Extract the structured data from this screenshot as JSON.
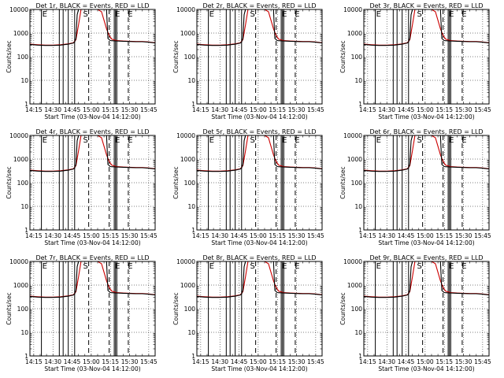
{
  "figure": {
    "colors": {
      "events": "#000000",
      "lld": "#cc0000",
      "background": "#ffffff"
    }
  },
  "chart_data": [
    {
      "type": "line",
      "title": "Det 1r, BLACK = Events, RED = LLD",
      "xlabel": "Start Time (03-Nov-04 14:12:00)",
      "ylabel": "Counts/sec",
      "yscale": "log",
      "ylim": [
        1,
        10000
      ],
      "xlim": [
        "14:12",
        "15:50"
      ],
      "xticks": [
        "14:15",
        "14:30",
        "14:45",
        "15:00",
        "15:15",
        "15:30",
        "15:45"
      ],
      "yticks": [
        "1",
        "10",
        "100",
        "1000",
        "10000"
      ],
      "grid": "dotted"
    },
    {
      "type": "line",
      "title": "Det 2r, BLACK = Events, RED = LLD",
      "xlabel": "Start Time (03-Nov-04 14:12:00)",
      "ylabel": "Counts/sec",
      "yscale": "log",
      "ylim": [
        1,
        10000
      ],
      "xlim": [
        "14:12",
        "15:50"
      ],
      "xticks": [
        "14:15",
        "14:30",
        "14:45",
        "15:00",
        "15:15",
        "15:30",
        "15:45"
      ],
      "yticks": [
        "1",
        "10",
        "100",
        "1000",
        "10000"
      ],
      "grid": "dotted"
    },
    {
      "type": "line",
      "title": "Det 3r, BLACK = Events, RED = LLD",
      "xlabel": "Start Time (03-Nov-04 14:12:00)",
      "ylabel": "Counts/sec",
      "yscale": "log",
      "ylim": [
        1,
        10000
      ],
      "xlim": [
        "14:12",
        "15:50"
      ],
      "xticks": [
        "14:15",
        "14:30",
        "14:45",
        "15:00",
        "15:15",
        "15:30",
        "15:45"
      ],
      "yticks": [
        "1",
        "10",
        "100",
        "1000",
        "10000"
      ],
      "grid": "dotted"
    },
    {
      "type": "line",
      "title": "Det 4r, BLACK = Events, RED = LLD",
      "xlabel": "Start Time (03-Nov-04 14:12:00)",
      "ylabel": "Counts/sec",
      "yscale": "log",
      "ylim": [
        1,
        10000
      ],
      "xlim": [
        "14:12",
        "15:50"
      ],
      "xticks": [
        "14:15",
        "14:30",
        "14:45",
        "15:00",
        "15:15",
        "15:30",
        "15:45"
      ],
      "yticks": [
        "1",
        "10",
        "100",
        "1000",
        "10000"
      ],
      "grid": "dotted"
    },
    {
      "type": "line",
      "title": "Det 5r, BLACK = Events, RED = LLD",
      "xlabel": "Start Time (03-Nov-04 14:12:00)",
      "ylabel": "Counts/sec",
      "yscale": "log",
      "ylim": [
        1,
        10000
      ],
      "xlim": [
        "14:12",
        "15:50"
      ],
      "xticks": [
        "14:15",
        "14:30",
        "14:45",
        "15:00",
        "15:15",
        "15:30",
        "15:45"
      ],
      "yticks": [
        "1",
        "10",
        "100",
        "1000",
        "10000"
      ],
      "grid": "dotted"
    },
    {
      "type": "line",
      "title": "Det 6r, BLACK = Events, RED = LLD",
      "xlabel": "Start Time (03-Nov-04 14:12:00)",
      "ylabel": "Counts/sec",
      "yscale": "log",
      "ylim": [
        1,
        10000
      ],
      "xlim": [
        "14:12",
        "15:50"
      ],
      "xticks": [
        "14:15",
        "14:30",
        "14:45",
        "15:00",
        "15:15",
        "15:30",
        "15:45"
      ],
      "yticks": [
        "1",
        "10",
        "100",
        "1000",
        "10000"
      ],
      "grid": "dotted"
    },
    {
      "type": "line",
      "title": "Det 7r, BLACK = Events, RED = LLD",
      "xlabel": "Start Time (03-Nov-04 14:12:00)",
      "ylabel": "Counts/sec",
      "yscale": "log",
      "ylim": [
        1,
        10000
      ],
      "xlim": [
        "14:12",
        "15:50"
      ],
      "xticks": [
        "14:15",
        "14:30",
        "14:45",
        "15:00",
        "15:15",
        "15:30",
        "15:45"
      ],
      "yticks": [
        "1",
        "10",
        "100",
        "1000",
        "10000"
      ],
      "grid": "dotted"
    },
    {
      "type": "line",
      "title": "Det 8r, BLACK = Events, RED = LLD",
      "xlabel": "Start Time (03-Nov-04 14:12:00)",
      "ylabel": "Counts/sec",
      "yscale": "log",
      "ylim": [
        1,
        10000
      ],
      "xlim": [
        "14:12",
        "15:50"
      ],
      "xticks": [
        "14:15",
        "14:30",
        "14:45",
        "15:00",
        "15:15",
        "15:30",
        "15:45"
      ],
      "yticks": [
        "1",
        "10",
        "100",
        "1000",
        "10000"
      ],
      "grid": "dotted"
    },
    {
      "type": "line",
      "title": "Det 9r, BLACK = Events, RED = LLD",
      "xlabel": "Start Time (03-Nov-04 14:12:00)",
      "ylabel": "Counts/sec",
      "yscale": "log",
      "ylim": [
        1,
        10000
      ],
      "xlim": [
        "14:12",
        "15:50"
      ],
      "xticks": [
        "14:15",
        "14:30",
        "14:45",
        "15:00",
        "15:15",
        "15:30",
        "15:45"
      ],
      "yticks": [
        "1",
        "10",
        "100",
        "1000",
        "10000"
      ],
      "grid": "dotted"
    }
  ],
  "series": {
    "events": {
      "x": [
        "14:12",
        "14:18",
        "14:24",
        "14:30",
        "14:36",
        "14:42",
        "14:46",
        "14:47",
        "14:48",
        "14:49",
        "14:50",
        "15:12",
        "15:13",
        "15:15",
        "15:20",
        "15:25",
        "15:30",
        "15:35",
        "15:40",
        "15:45",
        "15:50"
      ],
      "y": [
        330,
        310,
        300,
        300,
        310,
        340,
        380,
        420,
        600,
        6000,
        10000,
        10000,
        600,
        480,
        460,
        450,
        440,
        430,
        430,
        410,
        380
      ]
    },
    "lld": {
      "x": [
        "14:12",
        "14:18",
        "14:24",
        "14:30",
        "14:36",
        "14:42",
        "14:46",
        "14:48",
        "14:50",
        "14:52",
        "15:05",
        "15:08",
        "15:10",
        "15:12",
        "15:14",
        "15:16",
        "15:20",
        "15:25",
        "15:30",
        "15:35",
        "15:40",
        "15:45",
        "15:50"
      ],
      "y": [
        340,
        320,
        310,
        310,
        320,
        350,
        390,
        520,
        2200,
        10000,
        10000,
        8000,
        3500,
        1500,
        800,
        560,
        480,
        460,
        450,
        440,
        440,
        420,
        390
      ]
    }
  },
  "markers": {
    "solid": [
      "14:21",
      "14:35",
      "14:38",
      "14:42",
      "14:47",
      "15:18",
      "15:19",
      "15:20"
    ],
    "dashed": [
      "14:58",
      "15:14",
      "15:29"
    ],
    "flags": [
      {
        "x": "14:21",
        "label": "E"
      },
      {
        "x": "14:53",
        "label": "S"
      },
      {
        "x": "15:18",
        "label": "E"
      },
      {
        "x": "15:28",
        "label": "E"
      }
    ]
  }
}
